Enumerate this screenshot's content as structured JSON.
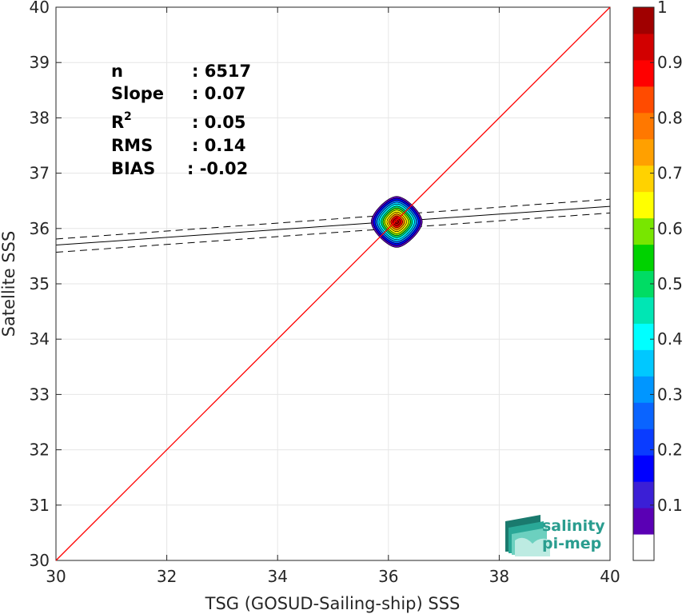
{
  "chart_data": {
    "type": "heatmap",
    "xlabel": "TSG (GOSUD-Sailing-ship) SSS",
    "ylabel": "Satellite SSS",
    "xlim": [
      30,
      40
    ],
    "ylim": [
      30,
      40
    ],
    "x_ticks": [
      "30",
      "32",
      "34",
      "36",
      "38",
      "40"
    ],
    "y_ticks": [
      "30",
      "31",
      "32",
      "33",
      "34",
      "35",
      "36",
      "37",
      "38",
      "39",
      "40"
    ],
    "grid": true,
    "identity_line": {
      "x": [
        30,
        40
      ],
      "y": [
        30,
        40
      ],
      "color": "#ff0000"
    },
    "regression": {
      "x": [
        30,
        40
      ],
      "fit": [
        35.7,
        36.4
      ],
      "upper": [
        35.81,
        36.53
      ],
      "lower": [
        35.57,
        36.28
      ]
    },
    "density_center": {
      "x": 36.15,
      "y": 36.12
    },
    "stats": {
      "n_label": "n",
      "n_value": ": 6517",
      "slope_label": "Slope",
      "slope_value": ": 0.07",
      "r2_label": "R",
      "r2_sup": "2",
      "r2_value": ": 0.05",
      "rms_label": "RMS",
      "rms_value": ": 0.14",
      "bias_label": "BIAS",
      "bias_value": ": -0.02"
    },
    "colorbar": {
      "ticks": [
        "0.1",
        "0.2",
        "0.3",
        "0.4",
        "0.5",
        "0.6",
        "0.7",
        "0.8",
        "0.9",
        "1"
      ],
      "range": [
        0,
        1
      ],
      "colors": [
        "#ffffff",
        "#5a00b4",
        "#3b1fd6",
        "#0000ff",
        "#0a3cff",
        "#0a64ff",
        "#0096ff",
        "#00c8ff",
        "#00ffff",
        "#00e6b4",
        "#00dc64",
        "#00d200",
        "#78e600",
        "#ffff00",
        "#ffd200",
        "#ffa000",
        "#ff7800",
        "#ff4b00",
        "#ff0000",
        "#d20000",
        "#a00000"
      ]
    }
  },
  "logo": {
    "line1": "salinity",
    "line2": "pi-mep"
  }
}
